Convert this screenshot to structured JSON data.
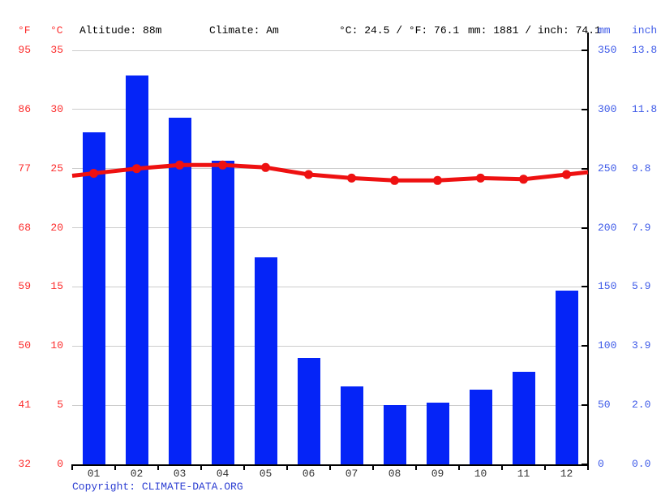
{
  "header": {
    "f_label": "°F",
    "c_label": "°C",
    "altitude": "Altitude: 88m",
    "climate": "Climate: Am",
    "temp_summary": "°C: 24.5 / °F: 76.1",
    "precip_summary": "mm: 1881 / inch: 74.1",
    "mm_label": "mm",
    "inch_label": "inch"
  },
  "footer": {
    "copyright_label": "Copyright: ",
    "link": "CLIMATE-DATA.ORG"
  },
  "colors": {
    "bar_blue": "#0524f7",
    "line_red": "#ee1111",
    "red_text": "#fc2d2d",
    "blue_text": "#3f5be8",
    "copyright_blue": "#2c3ed2",
    "month_text": "#333333",
    "gridline": "#cccccc",
    "axis": "#000000"
  },
  "chart_data": {
    "type": "bar+line",
    "title": "Climate graph: monthly precipitation (bars) and average temperature (line)",
    "categories": [
      "01",
      "02",
      "03",
      "04",
      "05",
      "06",
      "07",
      "08",
      "09",
      "10",
      "11",
      "12"
    ],
    "series": [
      {
        "name": "Precipitation",
        "unit": "mm",
        "type": "bar",
        "color": "#0524f7",
        "values": [
          281,
          329,
          293,
          257,
          175,
          90,
          66,
          50,
          52,
          63,
          78,
          147
        ]
      },
      {
        "name": "Average temperature",
        "unit": "°C",
        "type": "line",
        "color": "#ee1111",
        "values": [
          24.6,
          25.0,
          25.3,
          25.3,
          25.1,
          24.5,
          24.2,
          24.0,
          24.0,
          24.2,
          24.1,
          24.5
        ]
      }
    ],
    "axes": {
      "fahrenheit_ticks": [
        "95",
        "86",
        "77",
        "68",
        "59",
        "50",
        "41",
        "32"
      ],
      "celsius_ticks": [
        "35",
        "30",
        "25",
        "20",
        "15",
        "10",
        "5",
        "0"
      ],
      "mm_ticks": [
        "350",
        "300",
        "250",
        "200",
        "150",
        "100",
        "50",
        "0"
      ],
      "inch_ticks": [
        "13.8",
        "11.8",
        "9.8",
        "7.9",
        "5.9",
        "3.9",
        "2.0",
        "0.0"
      ],
      "celsius_range": [
        0,
        35
      ],
      "mm_range": [
        0,
        350
      ],
      "grid": true,
      "legend": "none"
    }
  }
}
